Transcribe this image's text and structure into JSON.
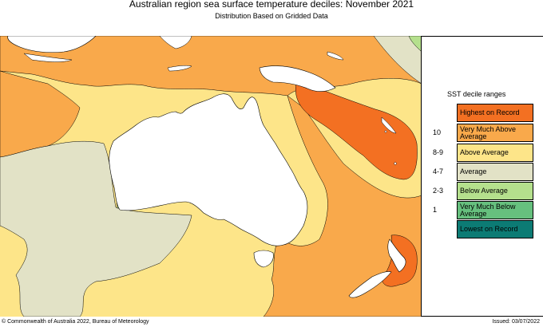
{
  "header": {
    "title": "Australian region sea surface temperature deciles:  November 2021",
    "subtitle": "Distribution Based on Gridded Data"
  },
  "map": {
    "description_colors": {
      "highest": "#f37022",
      "very_much_above": "#f9a94b",
      "above": "#fde589",
      "average": "#e2e2c6",
      "below": "#b5e08d",
      "very_much_below": "#66c07e",
      "lowest": "#0c7b74",
      "land": "#ffffff"
    }
  },
  "legend": {
    "title": "SST decile ranges",
    "items": [
      {
        "range": "",
        "label": "Highest on Record",
        "color": "#f37022"
      },
      {
        "range": "10",
        "label": "Very Much Above Average",
        "color": "#f9a94b"
      },
      {
        "range": "8-9",
        "label": "Above Average",
        "color": "#fde589"
      },
      {
        "range": "4-7",
        "label": "Average",
        "color": "#e2e2c6"
      },
      {
        "range": "2-3",
        "label": "Below Average",
        "color": "#b5e08d"
      },
      {
        "range": "1",
        "label": "Very Much Below Average",
        "color": "#66c07e"
      },
      {
        "range": "",
        "label": "Lowest on Record",
        "color": "#0c7b74"
      }
    ]
  },
  "footer": {
    "copyright": "© Commonwealth of Australia 2022, Bureau of Meteorology",
    "issued": "Issued: 03/07/2022"
  }
}
